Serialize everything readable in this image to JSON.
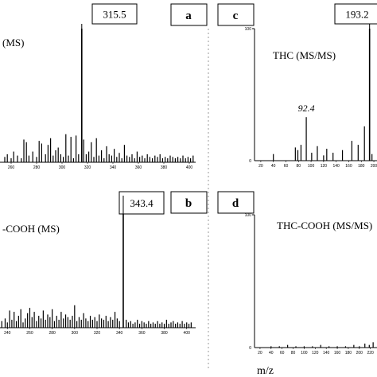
{
  "figure": {
    "x_axis_label": "m/z"
  },
  "chart_data": [
    {
      "panel": "a",
      "type": "bar",
      "title": "(MS)",
      "peak_label": "315.5",
      "x_ticks": [
        "260",
        "280",
        "300",
        "320",
        "340",
        "360",
        "380",
        "400"
      ],
      "xlim": [
        250,
        405
      ],
      "ylim": [
        0,
        100
      ],
      "x": [
        255,
        257,
        260,
        262,
        265,
        268,
        270,
        272,
        274,
        277,
        280,
        282,
        284,
        287,
        289,
        291,
        293,
        295,
        297,
        299,
        301,
        303,
        305,
        307,
        309,
        311,
        313,
        315.5,
        317,
        319,
        321,
        323,
        325,
        327,
        329,
        331,
        333,
        335,
        337,
        339,
        341,
        343,
        345,
        347,
        349,
        351,
        353,
        355,
        357,
        359,
        361,
        363,
        365,
        367,
        369,
        371,
        373,
        375,
        377,
        379,
        381,
        383,
        385,
        387,
        389,
        391,
        393,
        395,
        397,
        399,
        401,
        403
      ],
      "y": [
        4,
        6,
        3,
        8,
        5,
        3,
        17,
        15,
        5,
        8,
        4,
        16,
        14,
        6,
        13,
        18,
        5,
        9,
        11,
        6,
        4,
        21,
        5,
        19,
        3,
        20,
        6,
        100,
        17,
        6,
        8,
        15,
        4,
        18,
        5,
        9,
        3,
        12,
        6,
        5,
        10,
        4,
        7,
        3,
        13,
        5,
        4,
        6,
        3,
        8,
        4,
        5,
        3,
        6,
        4,
        3,
        5,
        4,
        6,
        3,
        4,
        3,
        5,
        4,
        3,
        4,
        3,
        5,
        3,
        4,
        3,
        5
      ]
    },
    {
      "panel": "b",
      "type": "bar",
      "title": "-COOH (MS)",
      "peak_label": "343.4",
      "x_ticks": [
        "240",
        "260",
        "280",
        "300",
        "320",
        "340",
        "360",
        "380",
        "400"
      ],
      "xlim": [
        232,
        408
      ],
      "ylim": [
        0,
        100
      ],
      "x": [
        235,
        238,
        240,
        242,
        244,
        246,
        248,
        250,
        252,
        254,
        256,
        258,
        260,
        262,
        264,
        266,
        268,
        270,
        272,
        274,
        276,
        278,
        280,
        282,
        284,
        286,
        288,
        290,
        292,
        294,
        296,
        298,
        300,
        302,
        304,
        306,
        308,
        310,
        312,
        314,
        316,
        318,
        320,
        322,
        324,
        326,
        328,
        330,
        332,
        334,
        336,
        338,
        340,
        343.4,
        346,
        348,
        350,
        352,
        354,
        356,
        358,
        360,
        362,
        364,
        366,
        368,
        370,
        372,
        374,
        376,
        378,
        380,
        382,
        384,
        386,
        388,
        390,
        392,
        394,
        396,
        398,
        400,
        402,
        404
      ],
      "y": [
        5,
        7,
        4,
        13,
        6,
        12,
        5,
        9,
        14,
        4,
        7,
        11,
        15,
        8,
        12,
        5,
        9,
        7,
        13,
        6,
        10,
        8,
        14,
        5,
        9,
        6,
        12,
        7,
        10,
        8,
        6,
        9,
        17,
        5,
        8,
        6,
        11,
        7,
        5,
        9,
        6,
        8,
        5,
        10,
        7,
        6,
        9,
        5,
        8,
        6,
        12,
        7,
        5,
        100,
        6,
        4,
        5,
        3,
        4,
        6,
        3,
        5,
        4,
        3,
        5,
        3,
        4,
        3,
        5,
        3,
        4,
        3,
        6,
        3,
        4,
        5,
        3,
        4,
        3,
        5,
        3,
        4,
        3,
        4
      ]
    },
    {
      "panel": "c",
      "type": "bar",
      "title": "THC (MS/MS)",
      "peak_label": "193.2",
      "annotation": "92.4",
      "y_max_label": "100",
      "y_zero_label": "0",
      "x_ticks": [
        "20",
        "40",
        "60",
        "80",
        "100",
        "120",
        "140",
        "160",
        "180",
        "200"
      ],
      "xlim": [
        10,
        205
      ],
      "ylim": [
        0,
        100
      ],
      "x": [
        40,
        75,
        79,
        84,
        92.4,
        101,
        110,
        120,
        125,
        135,
        150,
        165,
        175,
        185,
        193.2,
        197
      ],
      "y": [
        5,
        10,
        8,
        12,
        33,
        6,
        11,
        4,
        9,
        6,
        8,
        15,
        12,
        26,
        100,
        5
      ]
    },
    {
      "panel": "d",
      "type": "bar",
      "title": "THC-COOH (MS/MS)",
      "y_max_label": "100",
      "y_zero_label": "0",
      "x_ticks": [
        "20",
        "40",
        "60",
        "80",
        "100",
        "120",
        "140",
        "160",
        "180",
        "200",
        "220"
      ],
      "xlim": [
        10,
        232
      ],
      "ylim": [
        0,
        100
      ],
      "x": [
        40,
        55,
        70,
        85,
        100,
        115,
        130,
        145,
        160,
        175,
        190,
        200,
        210,
        218,
        225
      ],
      "y": [
        1,
        1,
        2,
        1,
        1,
        1,
        2,
        1,
        1,
        1,
        2,
        1,
        3,
        2,
        4
      ]
    }
  ]
}
